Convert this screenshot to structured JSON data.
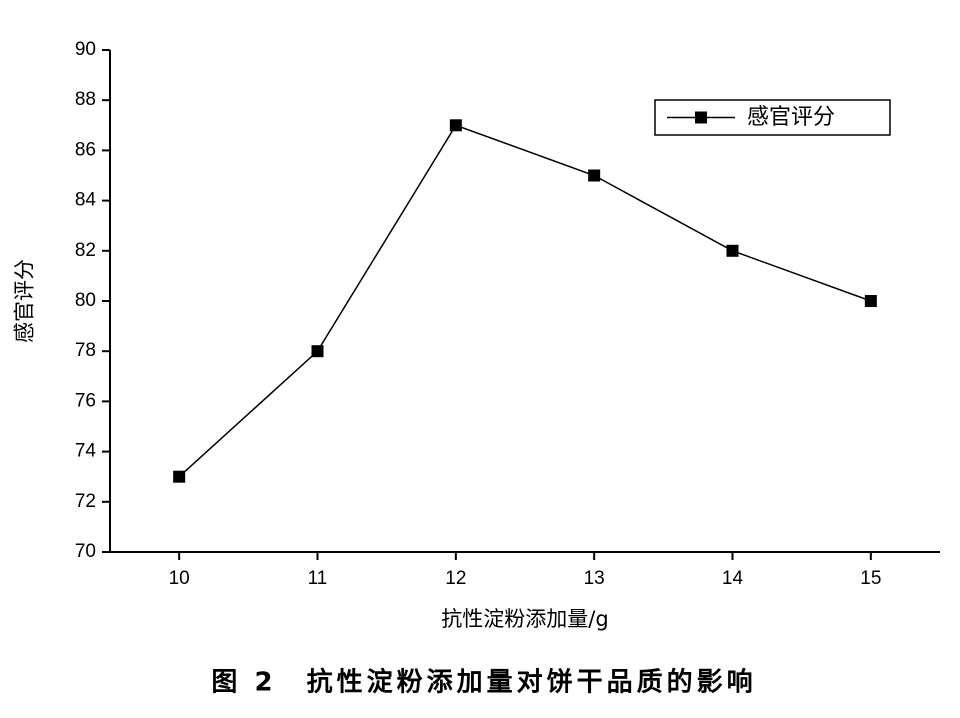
{
  "chart_data": {
    "type": "line",
    "caption": "图 2　抗性淀粉添加量对饼干品质的影响",
    "x_label": "抗性淀粉添加量/g",
    "y_label": "感官评分",
    "x": [
      10,
      11,
      12,
      13,
      14,
      15
    ],
    "series": [
      {
        "name": "感官评分",
        "color": "#000000",
        "values": [
          73,
          78,
          87,
          85,
          82,
          80
        ]
      }
    ],
    "xlim": [
      9.5,
      15.5
    ],
    "xticks": [
      10,
      11,
      12,
      13,
      14,
      15
    ],
    "ylim": [
      70,
      90
    ],
    "yticks": [
      70,
      72,
      74,
      76,
      78,
      80,
      82,
      84,
      86,
      88,
      90
    ],
    "legend": "upper-right",
    "grid": false
  }
}
